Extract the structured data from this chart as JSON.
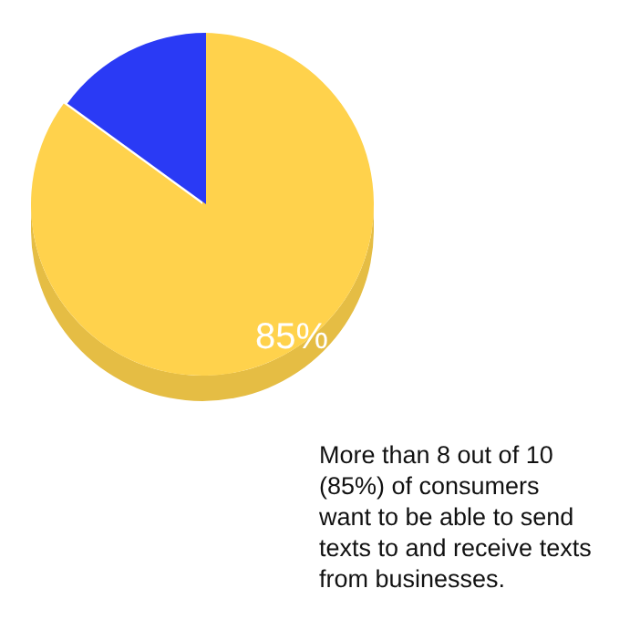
{
  "chart_data": {
    "type": "pie",
    "categories": [
      null,
      null
    ],
    "values": [
      85,
      15
    ],
    "colors": [
      "#ffd24c",
      "#2a3af5"
    ],
    "value_labels": [
      "85%",
      null
    ],
    "annotations": [
      "More than 8 out of 10 (85%) of consumers want to be able to send texts to and receive texts from businesses."
    ]
  }
}
